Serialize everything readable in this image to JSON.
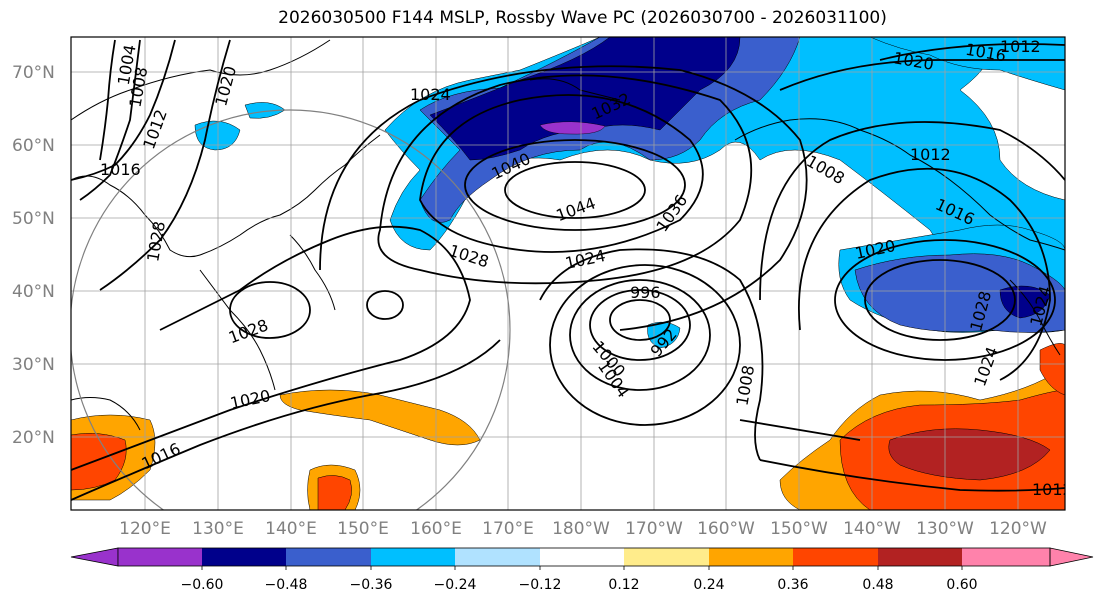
{
  "title": "2026030500 F144 MSLP, Rossby Wave PC (2026030700 - 2026031100)",
  "map": {
    "lat_labels": [
      "70°N",
      "60°N",
      "50°N",
      "40°N",
      "30°N",
      "20°N"
    ],
    "lon_labels": [
      "120°E",
      "130°E",
      "140°E",
      "150°E",
      "160°E",
      "170°E",
      "180°W",
      "170°W",
      "160°W",
      "150°W",
      "140°W",
      "130°W",
      "120°W"
    ],
    "gridlines": true,
    "isobar_labels": [
      "1004",
      "1008",
      "1012",
      "1016",
      "1020",
      "1024",
      "1028",
      "1032",
      "1036",
      "1040",
      "1044",
      "996",
      "992",
      "1000",
      "1004",
      "1008",
      "1012",
      "1016",
      "1020",
      "1024",
      "1028",
      "1024",
      "1020",
      "1016",
      "1012",
      "1008",
      "1012",
      "1016",
      "1020",
      "1024",
      "1028",
      "1028"
    ]
  },
  "colorbar": {
    "tick_labels": [
      "−0.60",
      "−0.48",
      "−0.36",
      "−0.24",
      "−0.12",
      "0.12",
      "0.24",
      "0.36",
      "0.48",
      "0.60"
    ],
    "colors": [
      "#9932CC",
      "#00008B",
      "#3A5FCD",
      "#00BFFF",
      "#B0E2FF",
      "#FFFFFF",
      "#FFEC8B",
      "#FFA500",
      "#FF4500",
      "#B22222",
      "#FF82AB"
    ],
    "extend": "both"
  }
}
